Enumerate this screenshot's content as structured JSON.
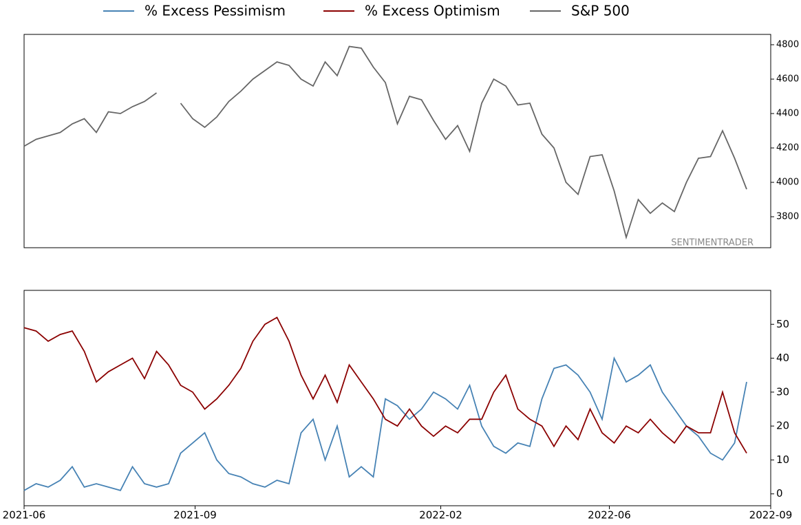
{
  "chart_data": [
    {
      "type": "line",
      "x": [
        0,
        5,
        10,
        15,
        20,
        25,
        30,
        35,
        40,
        45,
        50,
        55,
        60,
        65,
        70,
        75,
        80,
        85,
        90,
        95,
        100,
        105,
        110,
        115,
        120,
        125,
        130,
        135,
        140,
        145,
        150,
        155,
        160,
        165,
        170,
        175,
        180,
        185,
        190,
        195,
        200,
        205,
        210,
        215,
        220,
        225,
        230,
        235,
        240,
        245,
        250,
        255,
        260,
        265,
        270,
        275,
        280,
        285,
        290,
        295,
        300
      ],
      "xlim": [
        0,
        310
      ],
      "ylim": [
        3620,
        4860
      ],
      "yticks": [
        3800,
        4000,
        4200,
        4400,
        4600,
        4800
      ],
      "annotation": "SENTIMENTRADER",
      "series": [
        {
          "name": "S&P 500",
          "color": "#666666",
          "values": [
            4210,
            4250,
            4270,
            4290,
            4340,
            4370,
            4290,
            4410,
            4400,
            4440,
            4470,
            4520,
            null,
            4460,
            4370,
            4320,
            4380,
            4470,
            4530,
            4600,
            4650,
            4700,
            4680,
            4600,
            4560,
            4700,
            4620,
            4790,
            4780,
            4670,
            4580,
            4340,
            4500,
            4480,
            4360,
            4250,
            4330,
            4180,
            4460,
            4600,
            4560,
            4450,
            4460,
            4280,
            4200,
            4000,
            3930,
            4150,
            4160,
            3950,
            3680,
            3900,
            3820,
            3880,
            3830,
            4000,
            4140,
            4150,
            4300,
            4140,
            3960
          ]
        }
      ]
    },
    {
      "type": "line",
      "x": [
        0,
        5,
        10,
        15,
        20,
        25,
        30,
        35,
        40,
        45,
        50,
        55,
        60,
        65,
        70,
        75,
        80,
        85,
        90,
        95,
        100,
        105,
        110,
        115,
        120,
        125,
        130,
        135,
        140,
        145,
        150,
        155,
        160,
        165,
        170,
        175,
        180,
        185,
        190,
        195,
        200,
        205,
        210,
        215,
        220,
        225,
        230,
        235,
        240,
        245,
        250,
        255,
        260,
        265,
        270,
        275,
        280,
        285,
        290,
        295,
        300
      ],
      "xlim": [
        0,
        310
      ],
      "xticks": [
        {
          "value": 0,
          "label": "2021-06"
        },
        {
          "value": 71,
          "label": "2021-09"
        },
        {
          "value": 173,
          "label": "2022-02"
        },
        {
          "value": 243,
          "label": "2022-06"
        },
        {
          "value": 310,
          "label": "2022-09"
        }
      ],
      "ylim": [
        -3.5,
        60
      ],
      "yticks": [
        0,
        10,
        20,
        30,
        40,
        50
      ],
      "series": [
        {
          "name": "% Excess Pessimism",
          "color": "#4682b4",
          "values": [
            1,
            3,
            2,
            4,
            8,
            2,
            3,
            2,
            1,
            8,
            3,
            2,
            3,
            12,
            15,
            18,
            10,
            6,
            5,
            3,
            2,
            4,
            3,
            18,
            22,
            10,
            20,
            5,
            8,
            5,
            28,
            26,
            22,
            25,
            30,
            28,
            25,
            32,
            20,
            14,
            12,
            15,
            14,
            28,
            37,
            38,
            35,
            30,
            22,
            40,
            33,
            35,
            38,
            30,
            25,
            20,
            17,
            12,
            10,
            15,
            33
          ]
        },
        {
          "name": "% Excess Optimism",
          "color": "#8b0000",
          "values": [
            49,
            48,
            45,
            47,
            48,
            42,
            33,
            36,
            38,
            40,
            34,
            42,
            38,
            32,
            30,
            25,
            28,
            32,
            37,
            45,
            50,
            52,
            45,
            35,
            28,
            35,
            27,
            38,
            33,
            28,
            22,
            20,
            25,
            20,
            17,
            20,
            18,
            22,
            22,
            30,
            35,
            25,
            22,
            20,
            14,
            20,
            16,
            25,
            18,
            15,
            20,
            18,
            22,
            18,
            15,
            20,
            18,
            18,
            30,
            18,
            12
          ]
        }
      ]
    }
  ]
}
